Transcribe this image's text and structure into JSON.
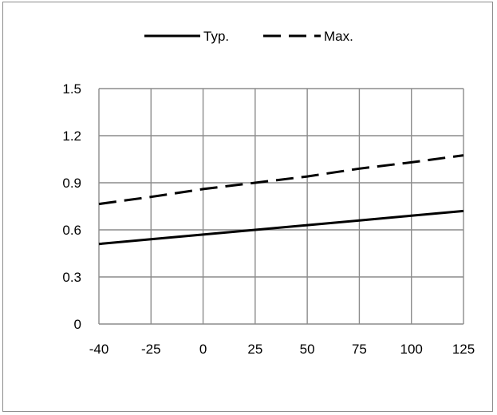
{
  "chart_data": {
    "type": "line",
    "title": "",
    "xlabel": "",
    "ylabel": "",
    "x": [
      -40,
      -25,
      0,
      25,
      50,
      75,
      100,
      125
    ],
    "xlim": [
      -40,
      125
    ],
    "ylim": [
      0,
      1.5
    ],
    "x_ticks": [
      "-40",
      "-25",
      "0",
      "25",
      "50",
      "75",
      "100",
      "125"
    ],
    "y_ticks": [
      "0",
      "0.3",
      "0.6",
      "0.9",
      "1.2",
      "1.5"
    ],
    "grid": true,
    "legend_position": "top",
    "series": [
      {
        "name": "Typ.",
        "line_style": "solid",
        "color": "#000000",
        "values": [
          0.51,
          0.54,
          0.57,
          0.6,
          0.63,
          0.66,
          0.69,
          0.72
        ]
      },
      {
        "name": "Max.",
        "line_style": "dashed",
        "color": "#000000",
        "values": [
          0.765,
          0.81,
          0.86,
          0.9,
          0.94,
          0.99,
          1.03,
          1.075
        ]
      }
    ]
  }
}
